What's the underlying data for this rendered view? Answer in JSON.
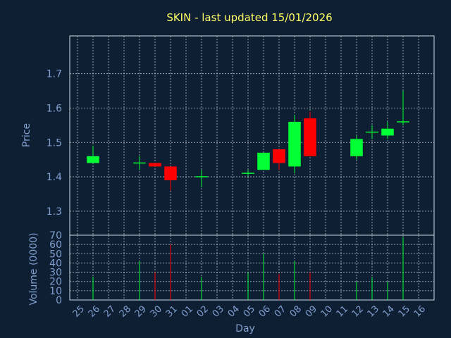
{
  "chart_data": {
    "type": "candlestick",
    "title": "SKIN - last updated 15/01/2026",
    "xlabel": "Day",
    "price_panel": {
      "ylabel": "Price",
      "ylim": [
        1.23,
        1.81
      ],
      "yticks": [
        1.3,
        1.4,
        1.5,
        1.6,
        1.7
      ],
      "ytick_labels": [
        "1.3",
        "1.4",
        "1.5",
        "1.6",
        "1.7"
      ]
    },
    "volume_panel": {
      "ylabel": "Volume (0000)",
      "ylim": [
        0,
        70
      ],
      "yticks": [
        0,
        10,
        20,
        30,
        40,
        50,
        60,
        70
      ],
      "ytick_labels": [
        "0",
        "10",
        "20",
        "30",
        "40",
        "50",
        "60",
        "70"
      ]
    },
    "x_tick_labels": [
      "25",
      "26",
      "27",
      "28",
      "29",
      "30",
      "31",
      "01",
      "02",
      "03",
      "04",
      "05",
      "06",
      "07",
      "08",
      "09",
      "10",
      "11",
      "12",
      "13",
      "14",
      "15",
      "16"
    ],
    "colors": {
      "up": "#00ff33",
      "down": "#ff0000",
      "grid": "#cfd8e3"
    },
    "candles": [
      {
        "day": "26",
        "open": 1.44,
        "high": 1.49,
        "low": 1.44,
        "close": 1.46,
        "volume": 25
      },
      {
        "day": "29",
        "open": 1.44,
        "high": 1.46,
        "low": 1.42,
        "close": 1.44,
        "volume": 42
      },
      {
        "day": "30",
        "open": 1.44,
        "high": 1.44,
        "low": 1.43,
        "close": 1.43,
        "volume": 30
      },
      {
        "day": "31",
        "open": 1.43,
        "high": 1.43,
        "low": 1.36,
        "close": 1.39,
        "volume": 60
      },
      {
        "day": "02",
        "open": 1.4,
        "high": 1.42,
        "low": 1.37,
        "close": 1.4,
        "volume": 25
      },
      {
        "day": "05",
        "open": 1.41,
        "high": 1.42,
        "low": 1.4,
        "close": 1.41,
        "volume": 30
      },
      {
        "day": "06",
        "open": 1.42,
        "high": 1.47,
        "low": 1.42,
        "close": 1.47,
        "volume": 50
      },
      {
        "day": "07",
        "open": 1.48,
        "high": 1.48,
        "low": 1.42,
        "close": 1.44,
        "volume": 28
      },
      {
        "day": "08",
        "open": 1.43,
        "high": 1.58,
        "low": 1.41,
        "close": 1.56,
        "volume": 42
      },
      {
        "day": "09",
        "open": 1.57,
        "high": 1.59,
        "low": 1.46,
        "close": 1.46,
        "volume": 30
      },
      {
        "day": "12",
        "open": 1.46,
        "high": 1.52,
        "low": 1.45,
        "close": 1.51,
        "volume": 20
      },
      {
        "day": "13",
        "open": 1.53,
        "high": 1.55,
        "low": 1.51,
        "close": 1.53,
        "volume": 25
      },
      {
        "day": "14",
        "open": 1.52,
        "high": 1.56,
        "low": 1.51,
        "close": 1.54,
        "volume": 20
      },
      {
        "day": "15",
        "open": 1.56,
        "high": 1.65,
        "low": 1.55,
        "close": 1.56,
        "volume": 68
      }
    ]
  }
}
